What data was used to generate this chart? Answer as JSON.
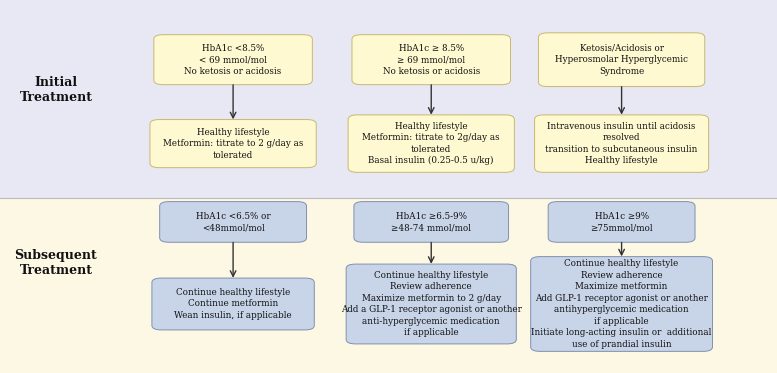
{
  "fig_width": 7.77,
  "fig_height": 3.73,
  "top_bg": "#e8e8f4",
  "bottom_bg": "#fdf8e4",
  "top_label": "Initial\nTreatment",
  "bottom_label": "Subsequent\nTreatment",
  "top_condition_color": "#fef9d0",
  "top_condition_border": "#c8b870",
  "top_result_color": "#fef9d0",
  "top_result_border": "#c8b870",
  "bottom_condition_color": "#c8d4e8",
  "bottom_condition_border": "#8090b0",
  "bottom_result_color": "#c8d4e8",
  "bottom_result_border": "#8090b0",
  "top_conditions": [
    "HbA1c <8.5%\n< 69 mmol/mol\nNo ketosis or acidosis",
    "HbA1c ≥ 8.5%\n≥ 69 mmol/mol\nNo ketosis or acidosis",
    "Ketosis/Acidosis or\nHyperosmolar Hyperglycemic\nSyndrome"
  ],
  "top_results": [
    "Healthy lifestyle\nMetformin: titrate to 2 g/day as\ntolerated",
    "Healthy lifestyle\nMetformin: titrate to 2g/day as\ntolerated\nBasal insulin (0.25-0.5 u/kg)",
    "Intravenous insulin until acidosis\nresolved\ntransition to subcutaneous insulin\nHealthy lifestyle"
  ],
  "bottom_conditions": [
    "HbA1c <6.5% or\n<48mmol/mol",
    "HbA1c ≥6.5-9%\n≥48-74 mmol/mol",
    "HbA1c ≥9%\n≥75mmol/mol"
  ],
  "bottom_results": [
    "Continue healthy lifestyle\nContinue metformin\nWean insulin, if applicable",
    "Continue healthy lifestyle\nReview adherence\nMaximize metformin to 2 g/day\nAdd a GLP-1 receptor agonist or another\nanti-hyperglycemic medication\nif applicable",
    "Continue healthy lifestyle\nReview adherence\nMaximize metformin\nAdd GLP-1 receptor agonist or another\nantihyperglycemic medication\nif applicable\nInitiate long-acting insulin or  additional\nuse of prandial insulin"
  ]
}
